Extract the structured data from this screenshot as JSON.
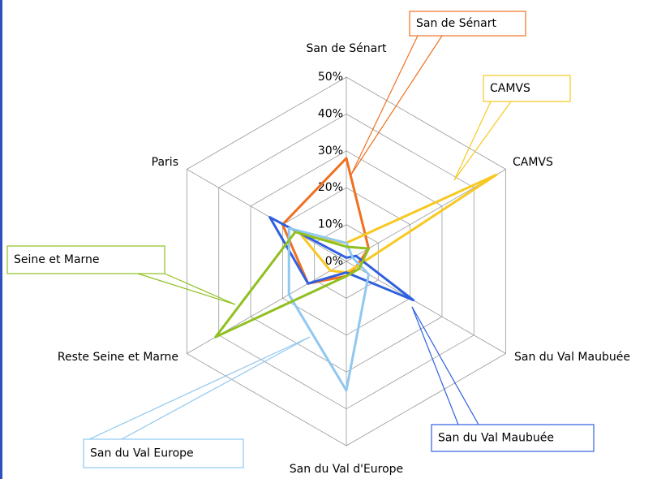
{
  "chart_data": {
    "type": "radar",
    "categories": [
      "San de Sénart",
      "CAMVS",
      "San du Val Maubuée",
      "San du Val d'Europe",
      "Reste Seine et Marne",
      "Paris"
    ],
    "series": [
      {
        "name": "San de Sénart",
        "color": "#f07020",
        "values": [
          28,
          7,
          3,
          4,
          12,
          20
        ]
      },
      {
        "name": "CAMVS",
        "color": "#f8c820",
        "values": [
          5,
          47,
          3,
          3,
          5,
          14
        ]
      },
      {
        "name": "San du Val Maubuée",
        "color": "#3060e0",
        "values": [
          1,
          3,
          21,
          3,
          12,
          24
        ]
      },
      {
        "name": "San du Val Europe",
        "color": "#90c8f0",
        "values": [
          5,
          2,
          7,
          35,
          18,
          18
        ]
      },
      {
        "name": "Seine et Marne",
        "color": "#90c020",
        "values": [
          4,
          7,
          4,
          4,
          41,
          16
        ]
      }
    ],
    "ylim": [
      0,
      50
    ],
    "yticks": [
      {
        "value": 0,
        "label": "0%"
      },
      {
        "value": 10,
        "label": "10%"
      },
      {
        "value": 20,
        "label": "20%"
      },
      {
        "value": 30,
        "label": "30%"
      },
      {
        "value": 40,
        "label": "40%"
      },
      {
        "value": 50,
        "label": "50%"
      }
    ],
    "grid": true
  }
}
